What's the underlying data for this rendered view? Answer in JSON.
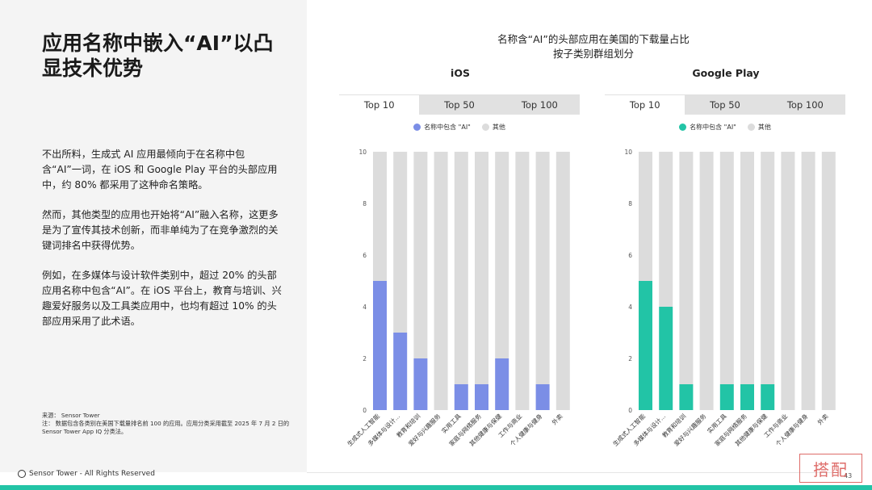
{
  "slide": {
    "title": "应用名称中嵌入“AI”以凸显技术优势",
    "paragraphs": [
      "不出所料，生成式 AI 应用最倾向于在名称中包含“AI”一词，在 iOS 和 Google Play 平台的头部应用中，约 80% 都采用了这种命名策略。",
      "然而，其他类型的应用也开始将“AI”融入名称，这更多是为了宣传其技术创新，而非单纯为了在竞争激烈的关键词排名中获得优势。",
      "例如，在多媒体与设计软件类别中，超过 20% 的头部应用名称中包含“AI”。在 iOS 平台上，教育与培训、兴趣爱好服务以及工具类应用中，也均有超过 10% 的头部应用采用了此术语。"
    ],
    "source": "来源： Sensor Tower",
    "note": "注： 数据包含各类别在美国下载量排名前 100 的应用。应用分类采用截至 2025 年 7 月 2 日的 Sensor Tower App IQ 分类法。",
    "footer": "Sensor Tower - All Rights Reserved",
    "page_number": "43",
    "stamp_text": "搭配"
  },
  "chart_header": {
    "title_line1": "名称含“AI”的头部应用在美国的下载量占比",
    "title_line2": "按子类别群组划分"
  },
  "colors": {
    "ios_accent": "#7b8ee6",
    "gp_accent": "#22c4a6",
    "other": "#dcdcdc"
  },
  "chart_data": [
    {
      "type": "bar",
      "panel": "iOS",
      "tabs": [
        "Top 10",
        "Top 50",
        "Top 100"
      ],
      "active_tab": "Top 10",
      "legend": [
        "名称中包含 \"AI\"",
        "其他"
      ],
      "categories": [
        "生成式人工智能",
        "多媒体与设计...",
        "教育和培训",
        "爱好与兴趣服务",
        "实用工具",
        "家庭与网络服务",
        "其他健康与保健",
        "工作与商业",
        "个人健康与健身",
        "外卖"
      ],
      "ylim": [
        0,
        10
      ],
      "yticks": [
        0,
        2,
        4,
        6,
        8,
        10
      ],
      "series": [
        {
          "name": "名称中包含 \"AI\"",
          "values": [
            5,
            3,
            2,
            0,
            1,
            1,
            2,
            0,
            1,
            0
          ]
        },
        {
          "name": "其他",
          "values": [
            5,
            7,
            8,
            10,
            9,
            9,
            8,
            10,
            9,
            10
          ]
        }
      ]
    },
    {
      "type": "bar",
      "panel": "Google Play",
      "tabs": [
        "Top 10",
        "Top 50",
        "Top 100"
      ],
      "active_tab": "Top 10",
      "legend": [
        "名称中包含 \"AI\"",
        "其他"
      ],
      "categories": [
        "生成式人工智能",
        "多媒体与设计...",
        "教育和培训",
        "爱好与兴趣服务",
        "实用工具",
        "家庭与网络服务",
        "其他健康与保健",
        "工作与商业",
        "个人健康与健身",
        "外卖"
      ],
      "ylim": [
        0,
        10
      ],
      "yticks": [
        0,
        2,
        4,
        6,
        8,
        10
      ],
      "series": [
        {
          "name": "名称中包含 \"AI\"",
          "values": [
            5,
            4,
            1,
            0,
            1,
            1,
            1,
            0,
            0,
            0
          ]
        },
        {
          "name": "其他",
          "values": [
            5,
            6,
            9,
            10,
            9,
            9,
            9,
            10,
            10,
            10
          ]
        }
      ]
    }
  ]
}
